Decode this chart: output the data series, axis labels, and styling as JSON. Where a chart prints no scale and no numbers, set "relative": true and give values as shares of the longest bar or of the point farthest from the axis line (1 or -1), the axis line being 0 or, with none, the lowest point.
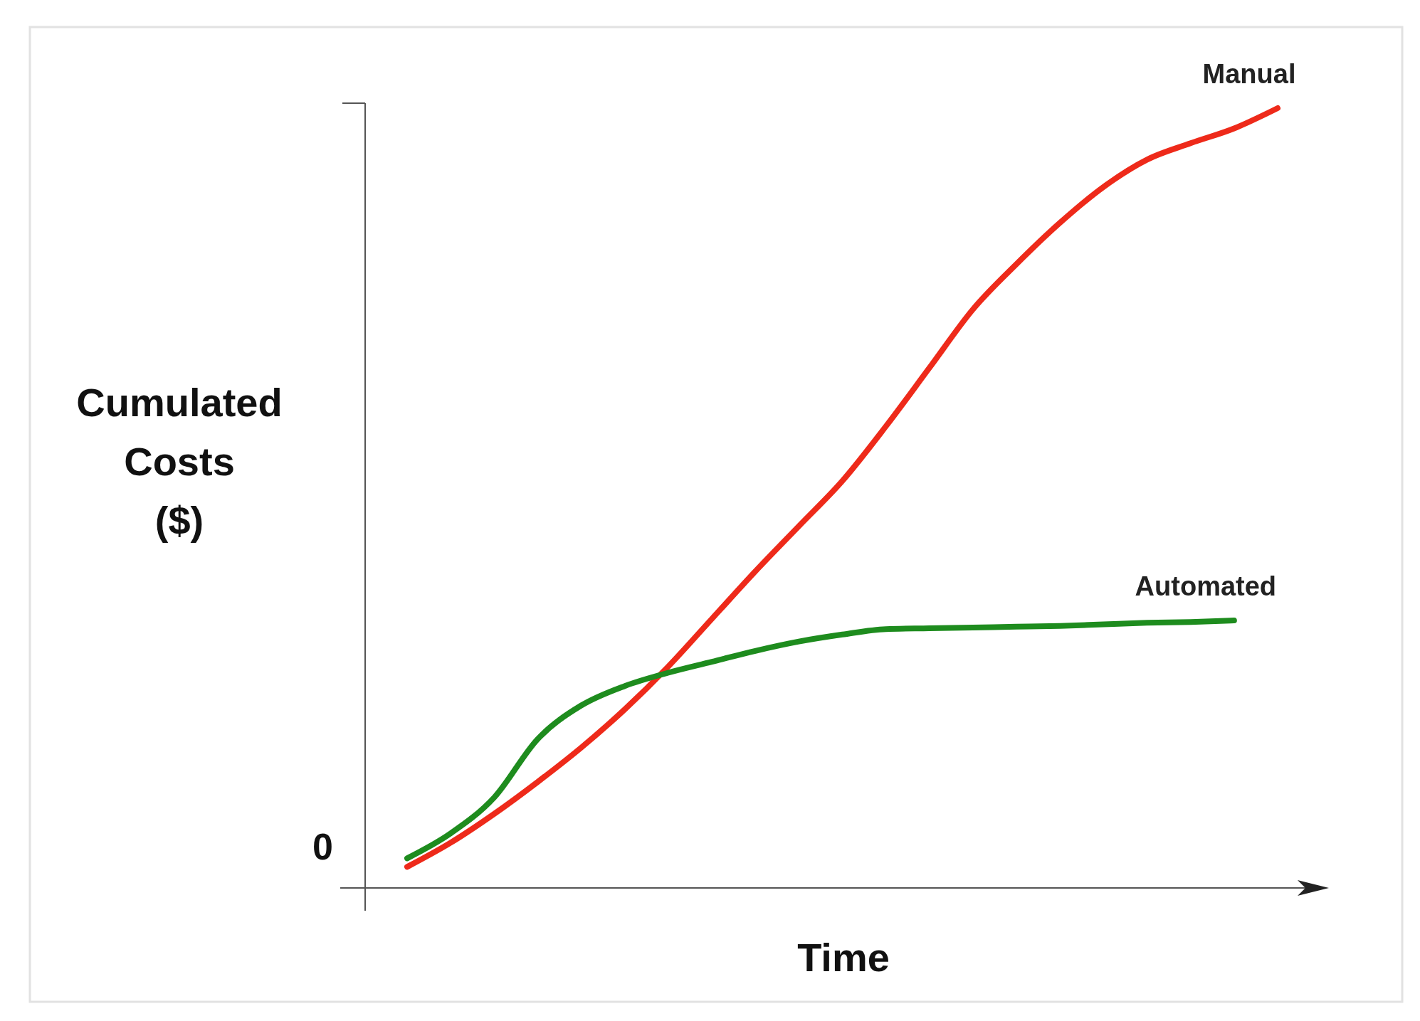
{
  "chart_data": {
    "type": "line",
    "relative": true,
    "xlabel": "Time",
    "ylabel": "Cumulated Costs ($)",
    "annotations": [
      "0"
    ],
    "legend": false,
    "marker": "none",
    "line_style": "solid",
    "categories": [
      null,
      null,
      null,
      null,
      null,
      null,
      null,
      null,
      null,
      null,
      null,
      null,
      null,
      null,
      null,
      null,
      null,
      null,
      null,
      null,
      null
    ],
    "series": [
      {
        "name": "Manual",
        "color": "#ee2a1a",
        "values": [
          0.027,
          0.058,
          0.095,
          0.136,
          0.18,
          0.229,
          0.284,
          0.345,
          0.406,
          0.464,
          0.522,
          0.592,
          0.667,
          0.742,
          0.8,
          0.853,
          0.899,
          0.934,
          0.955,
          0.974,
          1
        ]
      },
      {
        "name": "Automated",
        "color": "#1e8c1e",
        "values": [
          0.038,
          0.07,
          0.116,
          0.191,
          0.234,
          0.259,
          0.276,
          0.29,
          0.304,
          0.316,
          0.325,
          0.332,
          0.333,
          0.334,
          0.335,
          0.336,
          0.338,
          0.34,
          0.341,
          0.343,
          null
        ]
      }
    ]
  }
}
